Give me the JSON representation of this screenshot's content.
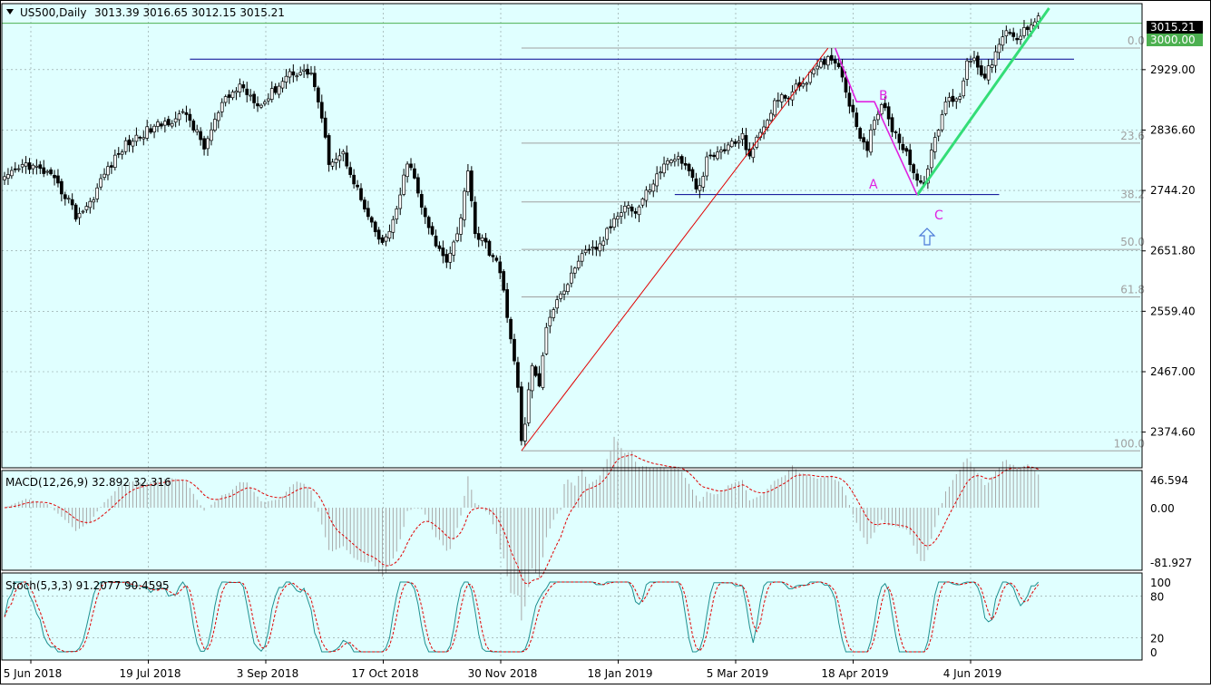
{
  "colors": {
    "background": "#E0FFFF",
    "frame": "#000000",
    "candle_up": "#FFFFFF",
    "candle_down": "#000000",
    "trend_red": "#E00000",
    "trend_green": "#33DD77",
    "abc_line": "#E020E0",
    "abc_text": "#E020E0",
    "hline_blue": "#000090",
    "level_green": "#4CB050",
    "fib_gray": "#A0A0A0",
    "macd_hist": "#A8A8A8",
    "macd_signal": "#E00000",
    "stoch_main": "#1E9090",
    "stoch_signal": "#E00000",
    "arrow_blue": "#4A78D8"
  },
  "header": {
    "symbol_label": "US500,Daily",
    "ohlc_values": "3013.39 3016.65 3012.15 3015.21"
  },
  "price_axis": {
    "ticks": [
      "2929.00",
      "2836.60",
      "2744.20",
      "2651.80",
      "2559.40",
      "2467.00",
      "2374.60"
    ],
    "current_price": "3015.21",
    "level_label": "3000.00"
  },
  "fib_labels": [
    "0.0",
    "23.6",
    "38.2",
    "50.0",
    "61.8",
    "100.0"
  ],
  "wave_labels": {
    "a": "A",
    "b": "B",
    "c": "C"
  },
  "macd": {
    "label": "MACD(12,26,9) 32.892 32.316",
    "ticks": [
      "46.594",
      "0.00",
      "-81.927"
    ]
  },
  "stoch": {
    "label": "Stoch(5,3,3) 91.2077 90.4595",
    "ticks": [
      "100",
      "80",
      "20",
      "0"
    ]
  },
  "time_axis": [
    "5 Jun 2018",
    "19 Jul 2018",
    "3 Sep 2018",
    "17 Oct 2018",
    "30 Nov 2018",
    "18 Jan 2019",
    "5 Mar 2019",
    "18 Apr 2019",
    "4 Jun 2019"
  ],
  "chart_data": {
    "type": "candlestick",
    "symbol": "US500",
    "timeframe": "Daily",
    "ylim": [
      2320,
      3030
    ],
    "anchors": [
      [
        0,
        2760
      ],
      [
        6,
        2785
      ],
      [
        12,
        2770
      ],
      [
        18,
        2730
      ],
      [
        20,
        2705
      ],
      [
        24,
        2725
      ],
      [
        28,
        2770
      ],
      [
        34,
        2815
      ],
      [
        40,
        2835
      ],
      [
        45,
        2848
      ],
      [
        51,
        2862
      ],
      [
        56,
        2810
      ],
      [
        61,
        2875
      ],
      [
        66,
        2905
      ],
      [
        72,
        2875
      ],
      [
        76,
        2900
      ],
      [
        80,
        2925
      ],
      [
        86,
        2925
      ],
      [
        88,
        2880
      ],
      [
        91,
        2790
      ],
      [
        95,
        2800
      ],
      [
        98,
        2760
      ],
      [
        102,
        2700
      ],
      [
        106,
        2660
      ],
      [
        110,
        2710
      ],
      [
        113,
        2790
      ],
      [
        115,
        2760
      ],
      [
        118,
        2700
      ],
      [
        121,
        2660
      ],
      [
        124,
        2640
      ],
      [
        126,
        2665
      ],
      [
        128,
        2700
      ],
      [
        130,
        2780
      ],
      [
        132,
        2680
      ],
      [
        135,
        2660
      ],
      [
        138,
        2635
      ],
      [
        140,
        2590
      ],
      [
        142,
        2520
      ],
      [
        144,
        2440
      ],
      [
        145,
        2360
      ],
      [
        146,
        2390
      ],
      [
        148,
        2480
      ],
      [
        150,
        2440
      ],
      [
        152,
        2540
      ],
      [
        155,
        2580
      ],
      [
        158,
        2600
      ],
      [
        161,
        2640
      ],
      [
        164,
        2650
      ],
      [
        167,
        2660
      ],
      [
        171,
        2700
      ],
      [
        174,
        2725
      ],
      [
        177,
        2710
      ],
      [
        180,
        2740
      ],
      [
        184,
        2775
      ],
      [
        187,
        2795
      ],
      [
        190,
        2790
      ],
      [
        193,
        2760
      ],
      [
        195,
        2745
      ],
      [
        197,
        2790
      ],
      [
        201,
        2805
      ],
      [
        204,
        2815
      ],
      [
        207,
        2825
      ],
      [
        209,
        2800
      ],
      [
        212,
        2830
      ],
      [
        216,
        2880
      ],
      [
        220,
        2890
      ],
      [
        224,
        2910
      ],
      [
        228,
        2930
      ],
      [
        232,
        2950
      ],
      [
        234,
        2935
      ],
      [
        236,
        2900
      ],
      [
        238,
        2860
      ],
      [
        240,
        2830
      ],
      [
        242,
        2810
      ],
      [
        244,
        2850
      ],
      [
        246,
        2880
      ],
      [
        248,
        2850
      ],
      [
        251,
        2820
      ],
      [
        253,
        2805
      ],
      [
        255,
        2770
      ],
      [
        257,
        2750
      ],
      [
        258,
        2760
      ],
      [
        260,
        2800
      ],
      [
        262,
        2840
      ],
      [
        264,
        2880
      ],
      [
        268,
        2890
      ],
      [
        270,
        2940
      ],
      [
        272,
        2950
      ],
      [
        275,
        2915
      ],
      [
        278,
        2955
      ],
      [
        281,
        2985
      ],
      [
        284,
        2975
      ],
      [
        287,
        2995
      ],
      [
        290,
        3015
      ]
    ],
    "series": [
      {
        "kind": "trendline",
        "points": [
          [
            145,
            2346
          ],
          [
            231,
            2962
          ]
        ]
      },
      {
        "kind": "trendline",
        "points": [
          [
            256,
            2737
          ],
          [
            293,
            3023
          ]
        ]
      },
      {
        "kind": "abc_wave",
        "points": [
          [
            233,
            2962
          ],
          [
            239,
            2880
          ],
          [
            244,
            2880
          ],
          [
            256,
            2737
          ]
        ]
      },
      {
        "kind": "horizontal_line",
        "price": 2945,
        "from": 52,
        "to": 300
      },
      {
        "kind": "horizontal_line",
        "price": 2738,
        "from": 188,
        "to": 279
      },
      {
        "kind": "level",
        "price": 3000
      },
      {
        "kind": "fibonacci",
        "low": 2346,
        "high": 2962,
        "ratios": [
          0,
          23.6,
          38.2,
          50,
          61.8,
          100
        ],
        "from": 145
      }
    ]
  }
}
